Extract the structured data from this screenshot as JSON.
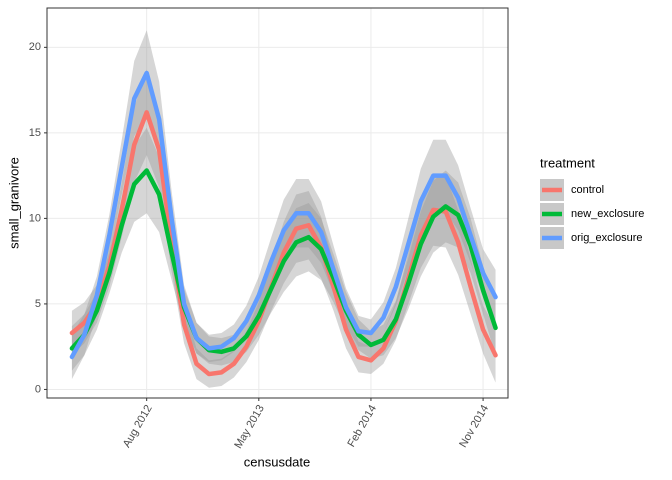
{
  "chart_data": {
    "type": "line",
    "x_label": "censusdate",
    "y_label": "small_granivore",
    "legend_title": "treatment",
    "legend_position": "right",
    "grid": true,
    "xlim": [
      "2011-12",
      "2015-01"
    ],
    "xticks": [
      {
        "value": "2012-08",
        "label": "Aug 2012"
      },
      {
        "value": "2013-05",
        "label": "May 2013"
      },
      {
        "value": "2014-02",
        "label": "Feb 2014"
      },
      {
        "value": "2014-11",
        "label": "Nov 2014"
      }
    ],
    "ylim": [
      -0.5,
      22.3
    ],
    "yticks": [
      0,
      5,
      10,
      15,
      20
    ],
    "x": [
      "2012-02",
      "2012-03",
      "2012-04",
      "2012-05",
      "2012-06",
      "2012-07",
      "2012-08",
      "2012-09",
      "2012-10",
      "2012-11",
      "2012-12",
      "2013-01",
      "2013-02",
      "2013-03",
      "2013-04",
      "2013-05",
      "2013-06",
      "2013-07",
      "2013-08",
      "2013-09",
      "2013-10",
      "2013-11",
      "2013-12",
      "2014-01",
      "2014-02",
      "2014-03",
      "2014-04",
      "2014-05",
      "2014-06",
      "2014-07",
      "2014-08",
      "2014-09",
      "2014-10",
      "2014-11",
      "2014-12"
    ],
    "series": [
      {
        "name": "control",
        "color": "#F8766D",
        "values": [
          3.3,
          3.9,
          5.0,
          7.2,
          10.5,
          14.3,
          16.2,
          14.0,
          8.5,
          3.8,
          1.5,
          0.9,
          1.0,
          1.5,
          2.5,
          4.0,
          6.0,
          8.0,
          9.4,
          9.6,
          8.3,
          6.0,
          3.5,
          1.9,
          1.7,
          2.4,
          4.0,
          6.5,
          9.0,
          10.5,
          10.4,
          8.6,
          6.0,
          3.5,
          2.0
        ],
        "lower": [
          2.0,
          2.7,
          3.9,
          6.0,
          8.9,
          12.1,
          13.7,
          11.8,
          6.9,
          2.7,
          0.6,
          0.1,
          0.2,
          0.7,
          1.6,
          2.9,
          4.6,
          6.2,
          7.4,
          7.6,
          6.5,
          4.6,
          2.4,
          1.0,
          0.9,
          1.5,
          2.9,
          5.0,
          7.1,
          8.4,
          8.3,
          6.7,
          4.4,
          2.1,
          0.4
        ],
        "upper": [
          4.6,
          5.1,
          6.1,
          8.4,
          12.1,
          16.5,
          18.7,
          16.2,
          10.1,
          4.9,
          2.4,
          1.7,
          1.8,
          2.3,
          3.4,
          5.1,
          7.4,
          9.8,
          11.4,
          11.6,
          10.1,
          7.4,
          4.6,
          2.8,
          2.5,
          3.3,
          5.1,
          8.0,
          10.9,
          12.6,
          12.5,
          10.5,
          7.6,
          4.9,
          3.6
        ]
      },
      {
        "name": "new_exclosure",
        "color": "#00BA38",
        "values": [
          2.4,
          3.2,
          4.6,
          6.8,
          9.6,
          12.0,
          12.8,
          11.4,
          8.0,
          4.8,
          3.0,
          2.3,
          2.2,
          2.4,
          3.1,
          4.3,
          5.9,
          7.5,
          8.6,
          8.9,
          8.2,
          6.5,
          4.6,
          3.2,
          2.6,
          2.9,
          4.1,
          6.2,
          8.5,
          10.1,
          10.7,
          10.2,
          8.4,
          5.8,
          3.6
        ],
        "lower": [
          1.1,
          2.0,
          3.5,
          5.6,
          8.0,
          9.8,
          10.3,
          9.2,
          6.4,
          3.7,
          2.1,
          1.5,
          1.4,
          1.6,
          2.2,
          3.2,
          4.5,
          5.7,
          6.6,
          6.9,
          6.4,
          5.1,
          3.5,
          2.3,
          1.8,
          2.0,
          3.0,
          4.7,
          6.6,
          8.0,
          8.6,
          8.3,
          6.8,
          4.4,
          2.0
        ],
        "upper": [
          3.7,
          4.4,
          5.7,
          8.0,
          11.2,
          14.2,
          15.3,
          13.6,
          9.6,
          5.9,
          3.9,
          3.1,
          3.0,
          3.2,
          4.0,
          5.4,
          7.3,
          9.3,
          10.6,
          10.9,
          10.0,
          7.9,
          5.7,
          4.1,
          3.4,
          3.8,
          5.2,
          7.7,
          10.4,
          12.2,
          12.8,
          12.1,
          10.0,
          7.2,
          5.2
        ]
      },
      {
        "name": "orig_exclosure",
        "color": "#619CFF",
        "values": [
          1.9,
          3.2,
          5.5,
          9.0,
          13.0,
          17.0,
          18.5,
          15.8,
          10.0,
          5.0,
          3.0,
          2.4,
          2.5,
          3.0,
          4.0,
          5.5,
          7.5,
          9.3,
          10.3,
          10.3,
          9.2,
          7.0,
          4.8,
          3.4,
          3.3,
          4.2,
          6.0,
          8.5,
          11.0,
          12.5,
          12.5,
          11.2,
          9.0,
          6.8,
          5.4
        ],
        "lower": [
          0.6,
          2.0,
          4.4,
          7.8,
          11.4,
          14.8,
          16.0,
          13.6,
          8.4,
          3.9,
          2.1,
          1.6,
          1.7,
          2.2,
          3.1,
          4.4,
          6.1,
          7.5,
          8.3,
          8.3,
          7.4,
          5.6,
          3.7,
          2.5,
          2.5,
          3.3,
          4.9,
          7.0,
          9.1,
          10.4,
          10.4,
          9.3,
          7.4,
          5.4,
          3.8
        ],
        "upper": [
          3.2,
          4.4,
          6.6,
          10.2,
          14.6,
          19.2,
          21.0,
          18.0,
          11.6,
          6.1,
          3.9,
          3.2,
          3.3,
          3.8,
          4.9,
          6.6,
          8.9,
          11.1,
          12.3,
          12.3,
          11.0,
          8.4,
          5.9,
          4.3,
          4.1,
          5.1,
          7.1,
          10.0,
          12.9,
          14.6,
          14.6,
          13.1,
          10.6,
          8.2,
          7.0
        ]
      }
    ]
  }
}
